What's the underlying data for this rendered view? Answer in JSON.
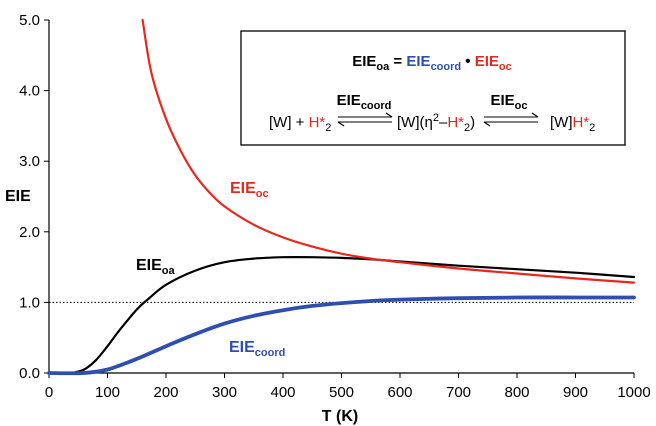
{
  "chart_data": {
    "type": "line",
    "xlabel": "T (K)",
    "ylabel": "EIE",
    "xlim": [
      0,
      1000
    ],
    "ylim": [
      0,
      5
    ],
    "x_ticks": [
      "0",
      "100",
      "200",
      "300",
      "400",
      "500",
      "600",
      "700",
      "800",
      "900",
      "1000"
    ],
    "y_ticks": [
      "0.0",
      "1.0",
      "2.0",
      "3.0",
      "4.0",
      "5.0"
    ],
    "grid": false,
    "reference_line": {
      "y": 1.0,
      "style": "dotted"
    },
    "series": [
      {
        "name": "EIE_oa",
        "color": "#000000",
        "x": [
          40,
          60,
          80,
          100,
          120,
          150,
          170,
          200,
          250,
          300,
          350,
          400,
          450,
          500,
          550,
          600,
          700,
          800,
          900,
          1000
        ],
        "y": [
          0.0,
          0.05,
          0.18,
          0.38,
          0.6,
          0.9,
          1.05,
          1.25,
          1.45,
          1.57,
          1.62,
          1.64,
          1.64,
          1.63,
          1.61,
          1.58,
          1.52,
          1.47,
          1.42,
          1.36
        ]
      },
      {
        "name": "EIE_oc",
        "color": "#e8281e",
        "x": [
          160,
          175,
          200,
          225,
          250,
          275,
          300,
          350,
          400,
          450,
          500,
          550,
          600,
          700,
          800,
          900,
          1000
        ],
        "y": [
          5.0,
          4.25,
          3.6,
          3.15,
          2.8,
          2.55,
          2.36,
          2.1,
          1.92,
          1.79,
          1.69,
          1.62,
          1.57,
          1.48,
          1.41,
          1.34,
          1.28
        ]
      },
      {
        "name": "EIE_coord",
        "color": "#2f4fb0",
        "x": [
          0,
          60,
          100,
          150,
          200,
          250,
          300,
          350,
          400,
          450,
          500,
          550,
          600,
          700,
          800,
          900,
          1000
        ],
        "y": [
          0.0,
          0.0,
          0.05,
          0.2,
          0.38,
          0.55,
          0.7,
          0.81,
          0.89,
          0.95,
          0.99,
          1.02,
          1.04,
          1.06,
          1.07,
          1.07,
          1.07
        ]
      }
    ],
    "labels": {
      "eie_main": "EIE",
      "oa_sub": "oa",
      "oc_sub": "oc",
      "coord_sub": "coord"
    },
    "legend_box": {
      "eq_equals": " = ",
      "eq_dot": " • ",
      "scheme_w": "[W] + ",
      "scheme_h": "H*",
      "scheme_two": "2",
      "scheme_mid_a": "[W](η",
      "scheme_mid_b": "–",
      "scheme_mid_c": ")",
      "scheme_end_w": "[W]"
    }
  }
}
